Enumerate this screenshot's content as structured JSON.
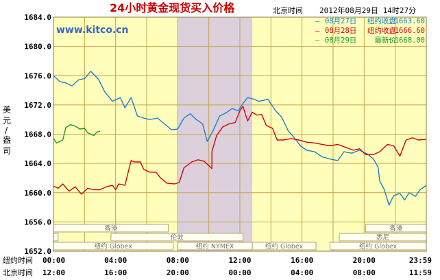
{
  "title": "24小时黄金现货买入价格",
  "timezone_label": "北京时间",
  "timestamp": "2012年08月29日 14时27分",
  "watermark": "www.kitco.cn",
  "ylabel_chars": [
    "美",
    "元",
    "/",
    "盎",
    "司"
  ],
  "colors": {
    "title": "#cc0000",
    "watermark": "#3366cc",
    "background": "#ffffbb",
    "grid": "#c4a44a",
    "frame": "#8b7d3a",
    "shade": "#dcd0dc",
    "aug27": "#1b7fd0",
    "aug28": "#d4000b",
    "aug29": "#1f9a24"
  },
  "legend": [
    {
      "date": "08月27日",
      "label": "纽约收盘",
      "value": "1663.60",
      "color": "#1b7fd0"
    },
    {
      "date": "08月28日",
      "label": "纽约收盘",
      "value": "1666.60",
      "color": "#d4000b"
    },
    {
      "date": "08月29日",
      "label": "最新价",
      "value": "1668.00",
      "color": "#1f9a24"
    }
  ],
  "sessions": {
    "row1": [
      {
        "label": "香港",
        "start": 0,
        "end": 7.4
      },
      {
        "label": "香港",
        "start": 20.1,
        "end": 24
      }
    ],
    "row2": [
      {
        "label": "伦敦",
        "start": 0,
        "end": 0.3
      },
      {
        "label": "伦敦",
        "start": 3.7,
        "end": 12.2
      },
      {
        "label": "悉尼",
        "start": 18.4,
        "end": 24
      }
    ],
    "row3": [
      {
        "label": "纽约 Globex",
        "start": 0,
        "end": 7.7
      },
      {
        "label": "纽约 NYMEX",
        "start": 8.0,
        "end": 12.8
      },
      {
        "label": "纽约 Globex",
        "start": 12.8,
        "end": 16.9
      },
      {
        "label": "纽约 Globex",
        "start": 17.8,
        "end": 24
      }
    ]
  },
  "x_axis": {
    "row1_label": "纽约时间",
    "row2_label": "北京时间",
    "row1_ticks": [
      "00:00",
      "04:00",
      "08:00",
      "12:00",
      "16:00",
      "20:00",
      "23:59"
    ],
    "row2_ticks": [
      "12:00",
      "16:00",
      "20:00",
      "00:00",
      "04:00",
      "08:00",
      "11:59"
    ]
  },
  "chart_data": {
    "type": "line",
    "xlabel": "纽约时间",
    "ylabel": "美元/盎司",
    "ylim": [
      1652.0,
      1684.0
    ],
    "xlim": [
      0,
      24
    ],
    "y_ticks": [
      "1652.0",
      "1656.0",
      "1660.0",
      "1664.0",
      "1668.0",
      "1672.0",
      "1676.0",
      "1680.0",
      "1684.0"
    ],
    "grid": true,
    "legend_position": "top-right",
    "shaded_range": [
      8.0,
      12.8
    ],
    "series": [
      {
        "name": "08月27日",
        "color": "#1b7fd0",
        "points": [
          [
            0,
            1676.0
          ],
          [
            0.4,
            1675.2
          ],
          [
            0.8,
            1675.0
          ],
          [
            1.2,
            1674.6
          ],
          [
            1.6,
            1675.4
          ],
          [
            2.0,
            1675.6
          ],
          [
            2.4,
            1676.6
          ],
          [
            2.9,
            1675.5
          ],
          [
            3.3,
            1673.8
          ],
          [
            3.8,
            1672.5
          ],
          [
            4.3,
            1673.0
          ],
          [
            4.6,
            1671.6
          ],
          [
            5.0,
            1673.0
          ],
          [
            5.4,
            1670.5
          ],
          [
            5.8,
            1670.2
          ],
          [
            6.2,
            1670.0
          ],
          [
            6.7,
            1670.2
          ],
          [
            7.2,
            1669.3
          ],
          [
            7.6,
            1668.6
          ],
          [
            8.0,
            1668.7
          ],
          [
            8.4,
            1670.2
          ],
          [
            8.8,
            1670.8
          ],
          [
            9.2,
            1670.0
          ],
          [
            9.6,
            1669.4
          ],
          [
            9.9,
            1667.0
          ],
          [
            10.3,
            1668.6
          ],
          [
            10.7,
            1670.5
          ],
          [
            11.1,
            1670.9
          ],
          [
            11.5,
            1671.5
          ],
          [
            11.9,
            1671.2
          ],
          [
            12.2,
            1672.2
          ],
          [
            12.5,
            1673.0
          ],
          [
            12.9,
            1672.8
          ],
          [
            13.2,
            1672.5
          ],
          [
            13.5,
            1672.6
          ],
          [
            13.8,
            1672.8
          ],
          [
            14.3,
            1671.2
          ],
          [
            14.7,
            1670.3
          ],
          [
            15.1,
            1668.5
          ],
          [
            15.5,
            1667.5
          ],
          [
            15.9,
            1666.4
          ],
          [
            16.3,
            1665.8
          ],
          [
            16.8,
            1665.6
          ],
          [
            17.3,
            1664.9
          ],
          [
            17.8,
            1664.6
          ],
          [
            18.3,
            1664.4
          ],
          [
            18.7,
            1665.6
          ],
          [
            19.2,
            1665.4
          ],
          [
            19.7,
            1665.8
          ],
          [
            20.2,
            1665.3
          ],
          [
            20.6,
            1664.6
          ],
          [
            20.9,
            1663.5
          ],
          [
            21.0,
            1661.6
          ],
          [
            21.3,
            1660.4
          ],
          [
            21.6,
            1658.3
          ],
          [
            21.9,
            1659.6
          ],
          [
            22.3,
            1659.9
          ],
          [
            22.6,
            1659.0
          ],
          [
            22.9,
            1660.0
          ],
          [
            23.3,
            1659.5
          ],
          [
            23.6,
            1660.4
          ],
          [
            24.0,
            1661.0
          ]
        ]
      },
      {
        "name": "08月28日",
        "color": "#d4000b",
        "points": [
          [
            0,
            1660.9
          ],
          [
            0.3,
            1660.6
          ],
          [
            0.6,
            1661.2
          ],
          [
            1.0,
            1660.2
          ],
          [
            1.4,
            1660.8
          ],
          [
            1.8,
            1659.8
          ],
          [
            2.2,
            1660.6
          ],
          [
            2.6,
            1660.4
          ],
          [
            3.0,
            1660.4
          ],
          [
            3.4,
            1660.8
          ],
          [
            3.8,
            1661.0
          ],
          [
            4.0,
            1660.4
          ],
          [
            4.2,
            1661.2
          ],
          [
            4.6,
            1661.0
          ],
          [
            5.0,
            1664.4
          ],
          [
            5.2,
            1664.2
          ],
          [
            5.6,
            1664.2
          ],
          [
            5.8,
            1663.2
          ],
          [
            6.2,
            1662.8
          ],
          [
            6.6,
            1662.8
          ],
          [
            6.9,
            1662.0
          ],
          [
            7.3,
            1661.3
          ],
          [
            7.8,
            1661.2
          ],
          [
            8.1,
            1661.4
          ],
          [
            8.4,
            1663.4
          ],
          [
            8.9,
            1664.2
          ],
          [
            9.3,
            1664.5
          ],
          [
            9.7,
            1664.3
          ],
          [
            10.2,
            1663.3
          ],
          [
            10.2,
            1665.6
          ],
          [
            10.5,
            1667.8
          ],
          [
            10.9,
            1669.0
          ],
          [
            11.3,
            1669.4
          ],
          [
            11.7,
            1669.6
          ],
          [
            12.0,
            1671.2
          ],
          [
            12.2,
            1671.8
          ],
          [
            12.5,
            1669.8
          ],
          [
            12.8,
            1671.0
          ],
          [
            13.1,
            1670.6
          ],
          [
            13.4,
            1670.7
          ],
          [
            13.7,
            1669.2
          ],
          [
            14.1,
            1668.8
          ],
          [
            14.4,
            1667.2
          ],
          [
            14.8,
            1667.2
          ],
          [
            15.3,
            1667.4
          ],
          [
            15.8,
            1667.2
          ],
          [
            16.3,
            1666.9
          ],
          [
            16.8,
            1666.8
          ],
          [
            17.3,
            1666.6
          ],
          [
            17.8,
            1666.4
          ],
          [
            18.3,
            1666.6
          ],
          [
            18.8,
            1666.2
          ],
          [
            19.3,
            1665.8
          ],
          [
            19.7,
            1666.0
          ],
          [
            20.1,
            1665.2
          ],
          [
            20.6,
            1665.2
          ],
          [
            21.0,
            1665.6
          ],
          [
            21.5,
            1666.6
          ],
          [
            21.9,
            1666.4
          ],
          [
            22.3,
            1665.0
          ],
          [
            22.7,
            1667.2
          ],
          [
            23.1,
            1667.5
          ],
          [
            23.5,
            1667.2
          ],
          [
            24.0,
            1667.3
          ]
        ]
      },
      {
        "name": "08月29日",
        "color": "#1f9a24",
        "points": [
          [
            0,
            1667.4
          ],
          [
            0.2,
            1666.8
          ],
          [
            0.4,
            1667.0
          ],
          [
            0.6,
            1667.2
          ],
          [
            0.8,
            1668.9
          ],
          [
            1.1,
            1669.3
          ],
          [
            1.4,
            1669.1
          ],
          [
            1.7,
            1668.7
          ],
          [
            2.0,
            1668.8
          ],
          [
            2.2,
            1668.2
          ],
          [
            2.4,
            1668.0
          ],
          [
            2.6,
            1667.8
          ],
          [
            2.8,
            1668.3
          ],
          [
            3.0,
            1668.4
          ]
        ]
      }
    ]
  }
}
